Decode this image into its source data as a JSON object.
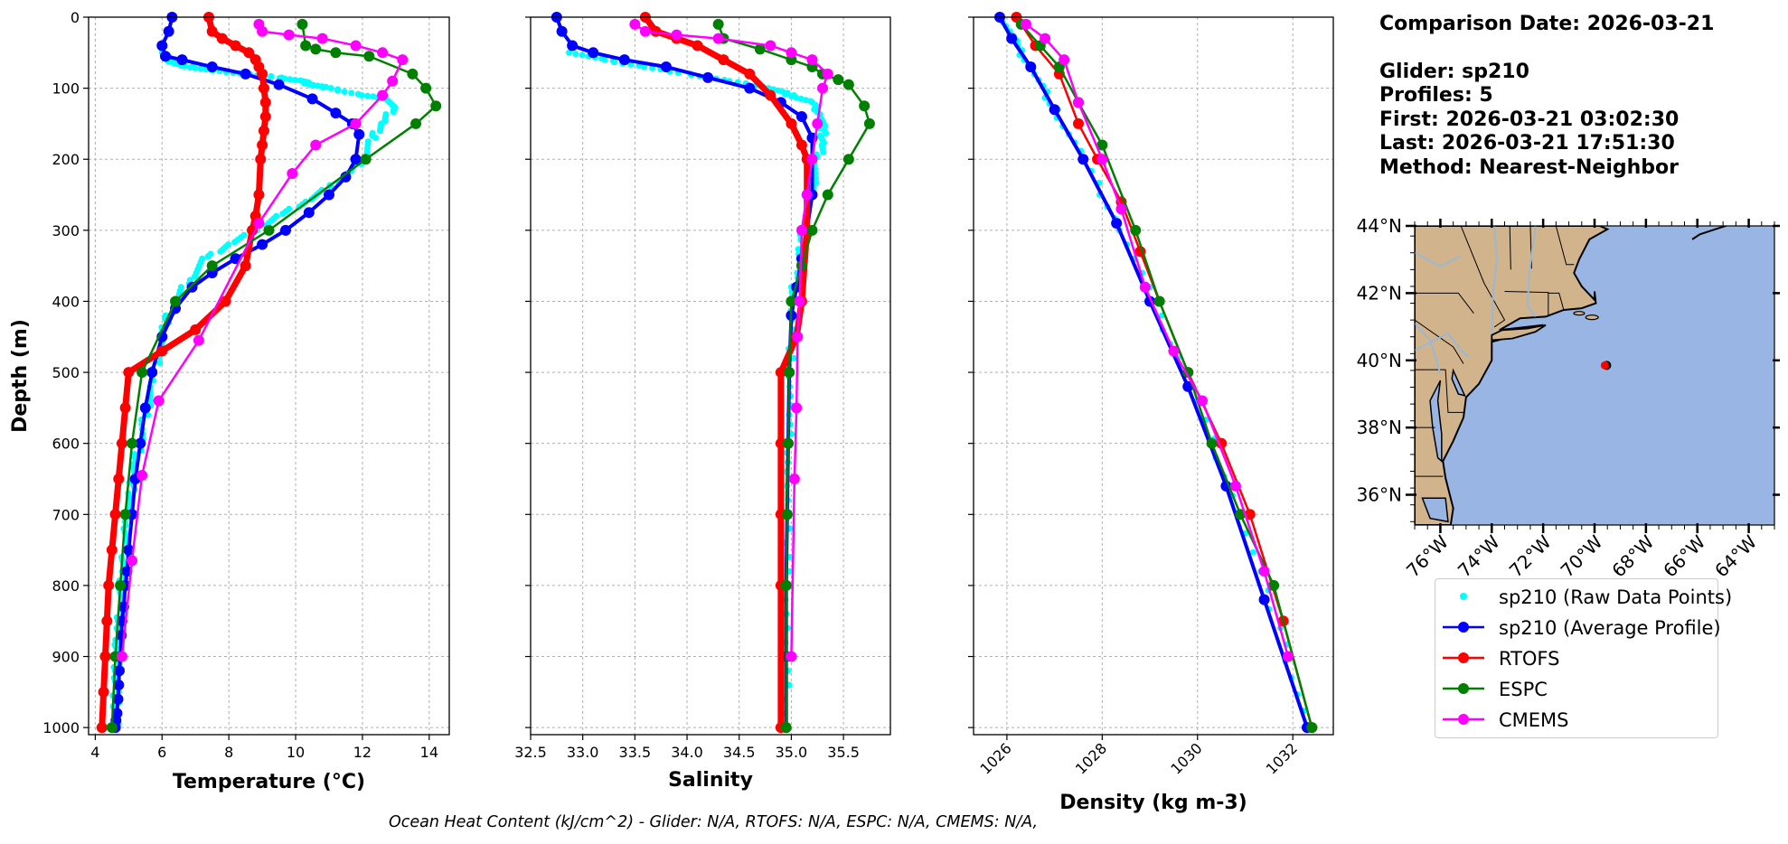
{
  "chart_data": [
    {
      "type": "line",
      "xlabel": "Temperature (°C)",
      "ylabel": "Depth (m)",
      "xlim": [
        3.8,
        14.6
      ],
      "ylim": [
        1010,
        0
      ],
      "xticks": [
        4,
        6,
        8,
        10,
        12,
        14
      ],
      "yticks": [
        0,
        100,
        200,
        300,
        400,
        500,
        600,
        700,
        800,
        900,
        1000
      ],
      "grid": true,
      "series": [
        {
          "name": "sp210 (Raw Data Points)",
          "style": "dots",
          "x": [
            6.1,
            6.2,
            6.4,
            6.8,
            7.5,
            8.5,
            9.5,
            10.2,
            10.5,
            11.0,
            12.0,
            12.8,
            12.9,
            12.6,
            12.3,
            12.0,
            11.6,
            11.0,
            10.3,
            9.5,
            8.8,
            8.0,
            7.3,
            6.8,
            6.4,
            6.1,
            5.9,
            5.7,
            5.5,
            5.35,
            5.2,
            5.1,
            5.0,
            4.95,
            4.9,
            4.85,
            4.8,
            4.75,
            4.7,
            4.68,
            4.66,
            4.64,
            4.62,
            4.6,
            4.6
          ],
          "y": [
            50,
            60,
            65,
            70,
            75,
            80,
            85,
            90,
            95,
            100,
            110,
            115,
            130,
            150,
            170,
            200,
            220,
            240,
            260,
            280,
            300,
            320,
            340,
            370,
            400,
            430,
            470,
            520,
            560,
            600,
            630,
            660,
            690,
            720,
            750,
            780,
            800,
            830,
            860,
            880,
            900,
            930,
            960,
            990,
            1000
          ]
        },
        {
          "name": "sp210 (Average Profile)",
          "x": [
            6.3,
            6.2,
            6.0,
            6.1,
            6.6,
            7.5,
            8.5,
            9.5,
            10.5,
            11.2,
            11.7,
            11.9,
            11.8,
            11.5,
            11.0,
            10.4,
            9.7,
            9.0,
            8.2,
            7.5,
            6.9,
            6.4,
            6.0,
            5.7,
            5.5,
            5.35,
            5.2,
            5.1,
            5.0,
            4.95,
            4.9,
            4.85,
            4.8,
            4.78,
            4.75,
            4.72,
            4.7,
            4.68,
            4.65,
            4.62,
            4.6
          ],
          "y": [
            0,
            20,
            40,
            55,
            60,
            70,
            80,
            95,
            115,
            135,
            150,
            165,
            200,
            225,
            250,
            275,
            300,
            320,
            340,
            360,
            380,
            410,
            450,
            500,
            550,
            600,
            650,
            700,
            750,
            780,
            800,
            830,
            850,
            870,
            900,
            920,
            940,
            960,
            980,
            990,
            1000
          ]
        },
        {
          "name": "RTOFS",
          "x": [
            7.4,
            7.5,
            7.8,
            8.2,
            8.6,
            8.8,
            8.9,
            9.0,
            9.05,
            9.1,
            9.1,
            9.05,
            9.0,
            8.95,
            8.9,
            8.8,
            8.7,
            8.5,
            7.9,
            7.0,
            6.0,
            5.0,
            4.9,
            4.8,
            4.7,
            4.6,
            4.5,
            4.4,
            4.35,
            4.3,
            4.25,
            4.2
          ],
          "y": [
            0,
            20,
            30,
            40,
            50,
            60,
            70,
            80,
            100,
            120,
            140,
            160,
            180,
            200,
            250,
            280,
            300,
            350,
            400,
            440,
            470,
            500,
            550,
            600,
            650,
            700,
            750,
            800,
            850,
            900,
            950,
            1000
          ]
        },
        {
          "name": "ESPC",
          "x": [
            10.2,
            10.3,
            10.6,
            11.2,
            12.2,
            13.5,
            13.9,
            14.2,
            13.6,
            12.1,
            9.2,
            7.5,
            6.4,
            5.4,
            5.1,
            4.9,
            4.75,
            4.6,
            4.5
          ],
          "y": [
            10,
            40,
            45,
            50,
            55,
            80,
            100,
            125,
            150,
            200,
            300,
            350,
            400,
            500,
            600,
            700,
            800,
            900,
            1000
          ]
        },
        {
          "name": "CMEMS",
          "x": [
            8.9,
            9.0,
            9.8,
            10.8,
            11.8,
            12.6,
            13.2,
            12.9,
            12.6,
            11.8,
            10.6,
            9.9,
            8.9,
            7.1,
            5.9,
            5.4,
            5.1,
            4.8
          ],
          "y": [
            10,
            20,
            25,
            30,
            40,
            50,
            60,
            90,
            110,
            150,
            180,
            220,
            290,
            455,
            540,
            645,
            765,
            900
          ]
        }
      ]
    },
    {
      "type": "line",
      "xlabel": "Salinity",
      "ylim": [
        1010,
        0
      ],
      "xlim": [
        32.5,
        35.95
      ],
      "xticks": [
        32.5,
        33.0,
        33.5,
        34.0,
        34.5,
        35.0,
        35.5
      ],
      "grid": true,
      "series": [
        {
          "name": "sp210 (Raw Data Points)",
          "style": "dots",
          "x": [
            32.9,
            33.2,
            33.6,
            34.0,
            34.4,
            34.8,
            35.0,
            35.2,
            35.3,
            35.3,
            35.3,
            35.25,
            35.2,
            35.15,
            35.1,
            35.05,
            35.0,
            35.0,
            34.98,
            34.97,
            34.96,
            34.95,
            34.95
          ],
          "y": [
            50,
            60,
            70,
            80,
            90,
            100,
            110,
            120,
            140,
            160,
            180,
            200,
            240,
            280,
            320,
            360,
            400,
            480,
            560,
            640,
            760,
            880,
            1000
          ]
        },
        {
          "name": "sp210 (Average Profile)",
          "x": [
            32.75,
            32.8,
            32.9,
            33.1,
            33.4,
            33.8,
            34.2,
            34.6,
            34.9,
            35.1,
            35.2,
            35.2,
            35.15,
            35.1,
            35.05,
            35.0,
            34.98,
            34.97,
            34.96,
            34.95,
            34.95,
            34.95
          ],
          "y": [
            0,
            20,
            40,
            50,
            60,
            70,
            85,
            100,
            120,
            140,
            170,
            250,
            300,
            340,
            380,
            420,
            500,
            600,
            700,
            800,
            900,
            1000
          ]
        },
        {
          "name": "RTOFS",
          "x": [
            33.6,
            33.7,
            33.9,
            34.1,
            34.35,
            34.6,
            34.8,
            35.0,
            35.1,
            35.15,
            35.15,
            35.1,
            35.05,
            34.9,
            34.9,
            34.9,
            34.9,
            34.9
          ],
          "y": [
            0,
            20,
            30,
            40,
            60,
            80,
            110,
            150,
            180,
            200,
            300,
            400,
            450,
            500,
            600,
            700,
            800,
            1000
          ]
        },
        {
          "name": "ESPC",
          "x": [
            34.3,
            34.35,
            34.7,
            35.0,
            35.2,
            35.3,
            35.45,
            35.55,
            35.7,
            35.75,
            35.55,
            35.35,
            35.2,
            35.1,
            35.0,
            34.98,
            34.97,
            34.96,
            34.95,
            34.95
          ],
          "y": [
            10,
            30,
            45,
            60,
            70,
            80,
            88,
            95,
            125,
            150,
            200,
            250,
            300,
            350,
            400,
            500,
            600,
            700,
            800,
            1000
          ]
        },
        {
          "name": "CMEMS",
          "x": [
            33.5,
            33.6,
            33.9,
            34.3,
            34.8,
            35.0,
            35.2,
            35.35,
            35.3,
            35.25,
            35.2,
            35.15,
            35.1,
            35.08,
            35.06,
            35.05,
            35.03,
            35.0
          ],
          "y": [
            10,
            20,
            25,
            30,
            40,
            50,
            60,
            80,
            100,
            150,
            200,
            250,
            300,
            400,
            450,
            550,
            650,
            900
          ]
        }
      ]
    },
    {
      "type": "line",
      "xlabel": "Density (kg m-3)",
      "ylim": [
        1010,
        0
      ],
      "xlim": [
        1025.3,
        1032.85
      ],
      "xticks": [
        1026,
        1028,
        1030,
        1032
      ],
      "grid": true,
      "series": [
        {
          "name": "sp210 (Raw Data Points)",
          "style": "dots",
          "x": [
            1025.9,
            1026.2,
            1026.6,
            1027.0,
            1027.6,
            1028.4,
            1029.2,
            1030.0,
            1030.9,
            1031.7,
            1032.3
          ],
          "y": [
            0,
            40,
            80,
            130,
            200,
            300,
            420,
            540,
            700,
            860,
            1000
          ]
        },
        {
          "name": "sp210 (Average Profile)",
          "x": [
            1025.85,
            1026.1,
            1026.5,
            1027.0,
            1027.6,
            1028.3,
            1029.0,
            1029.8,
            1030.6,
            1031.4,
            1032.3
          ],
          "y": [
            0,
            30,
            70,
            130,
            200,
            290,
            400,
            520,
            660,
            820,
            1000
          ]
        },
        {
          "name": "RTOFS",
          "x": [
            1026.2,
            1026.6,
            1027.1,
            1027.5,
            1027.9,
            1028.4,
            1028.8,
            1029.2,
            1029.8,
            1030.5,
            1031.1,
            1031.8,
            1032.4
          ],
          "y": [
            0,
            40,
            80,
            150,
            200,
            260,
            330,
            400,
            500,
            600,
            700,
            850,
            1000
          ]
        },
        {
          "name": "ESPC",
          "x": [
            1026.3,
            1026.7,
            1027.1,
            1027.5,
            1028.0,
            1028.7,
            1029.2,
            1029.8,
            1030.3,
            1030.9,
            1031.6,
            1032.4
          ],
          "y": [
            10,
            40,
            70,
            120,
            180,
            300,
            400,
            500,
            600,
            700,
            800,
            1000
          ]
        },
        {
          "name": "CMEMS",
          "x": [
            1026.4,
            1026.8,
            1027.2,
            1027.5,
            1028.0,
            1028.4,
            1028.9,
            1029.5,
            1030.1,
            1030.8,
            1031.4,
            1031.9
          ],
          "y": [
            10,
            30,
            60,
            120,
            200,
            270,
            380,
            470,
            540,
            660,
            780,
            900
          ]
        }
      ]
    },
    {
      "type": "map",
      "lon_ticks": [
        "76°W",
        "74°W",
        "72°W",
        "70°W",
        "68°W",
        "66°W",
        "64°W"
      ],
      "lat_ticks": [
        "44°N",
        "42°N",
        "40°N",
        "38°N",
        "36°N"
      ],
      "lon_range": [
        -77,
        -63
      ],
      "lat_range": [
        35.1,
        44
      ],
      "glider_lon": -69.6,
      "glider_lat": 39.85
    }
  ],
  "colors": {
    "raw": "#00ffff",
    "avg": "#0000ff",
    "rtofs": "#ff0000",
    "espc": "#008000",
    "cmems": "#ff00ff",
    "land": "#d2b48c",
    "ocean": "#98b5e4",
    "rivers": "#9ab8d4"
  },
  "info": {
    "comparison_date": "Comparison Date: 2026-03-21",
    "glider": "Glider: sp210",
    "profiles": "Profiles: 5",
    "first": "First: 2026-03-21 03:02:30",
    "last": "Last: 2026-03-21 17:51:30",
    "method": "Method: Nearest-Neighbor"
  },
  "legend": [
    {
      "label": "sp210 (Raw Data Points)",
      "color_key": "raw",
      "style": "dot"
    },
    {
      "label": "sp210 (Average Profile)",
      "color_key": "avg",
      "style": "line"
    },
    {
      "label": "RTOFS",
      "color_key": "rtofs",
      "style": "line"
    },
    {
      "label": "ESPC",
      "color_key": "espc",
      "style": "line"
    },
    {
      "label": "CMEMS",
      "color_key": "cmems",
      "style": "line"
    }
  ],
  "footer": {
    "ohc": "Ocean Heat Content (kJ/cm^2) - Glider: N/A,  RTOFS: N/A,  ESPC: N/A,  CMEMS: N/A,"
  }
}
